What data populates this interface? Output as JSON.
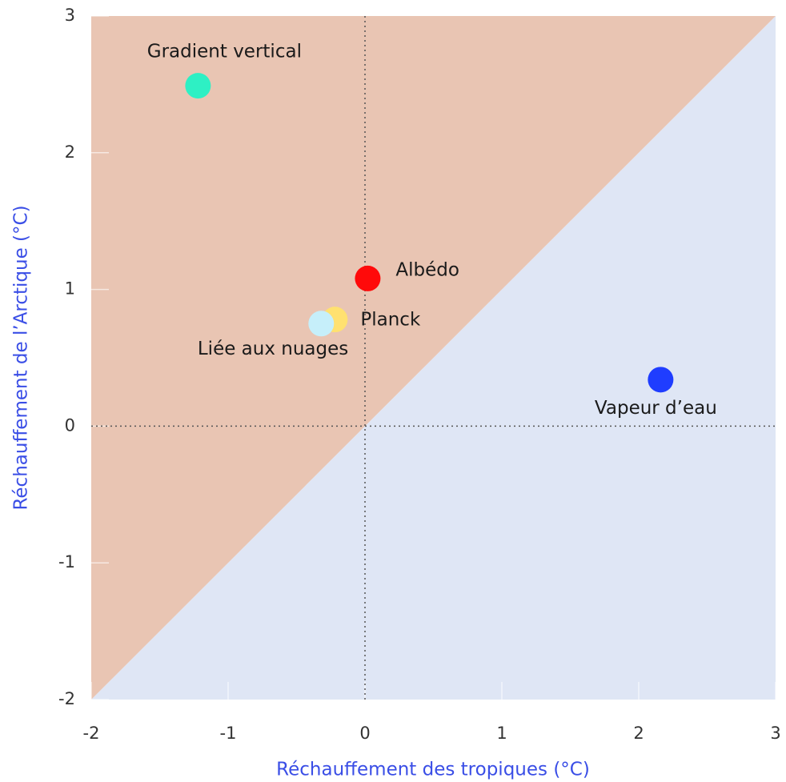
{
  "chart_data": {
    "type": "scatter",
    "x_label": "Réchauffement des tropiques (°C)",
    "y_label": "Réchauffement de l’Arctique (°C)",
    "xlim": [
      -2,
      3
    ],
    "ylim": [
      -2,
      3
    ],
    "xticks": [
      -2,
      -1,
      0,
      1,
      2,
      3
    ],
    "yticks": [
      -2,
      -1,
      0,
      1,
      2,
      3
    ],
    "vlines": [
      0
    ],
    "hlines": [
      0
    ],
    "upper_region_color": "#e9c5b3",
    "lower_region_color": "#dfe6f5",
    "series": [
      {
        "name": "Gradient vertical",
        "color": "#2ef0c4",
        "x": [
          -1.22
        ],
        "y": [
          2.49
        ]
      },
      {
        "name": "Albédo",
        "color": "#ff0a0a",
        "x": [
          0.02
        ],
        "y": [
          1.08
        ]
      },
      {
        "name": "Planck",
        "color": "#ffe170",
        "x": [
          -0.22
        ],
        "y": [
          0.78
        ]
      },
      {
        "name": "Liée aux nuages",
        "color": "#c6effa",
        "x": [
          -0.32
        ],
        "y": [
          0.75
        ]
      },
      {
        "name": "Vapeur d’eau",
        "color": "#1f3dff",
        "x": [
          2.16
        ],
        "y": [
          0.34
        ]
      }
    ]
  }
}
